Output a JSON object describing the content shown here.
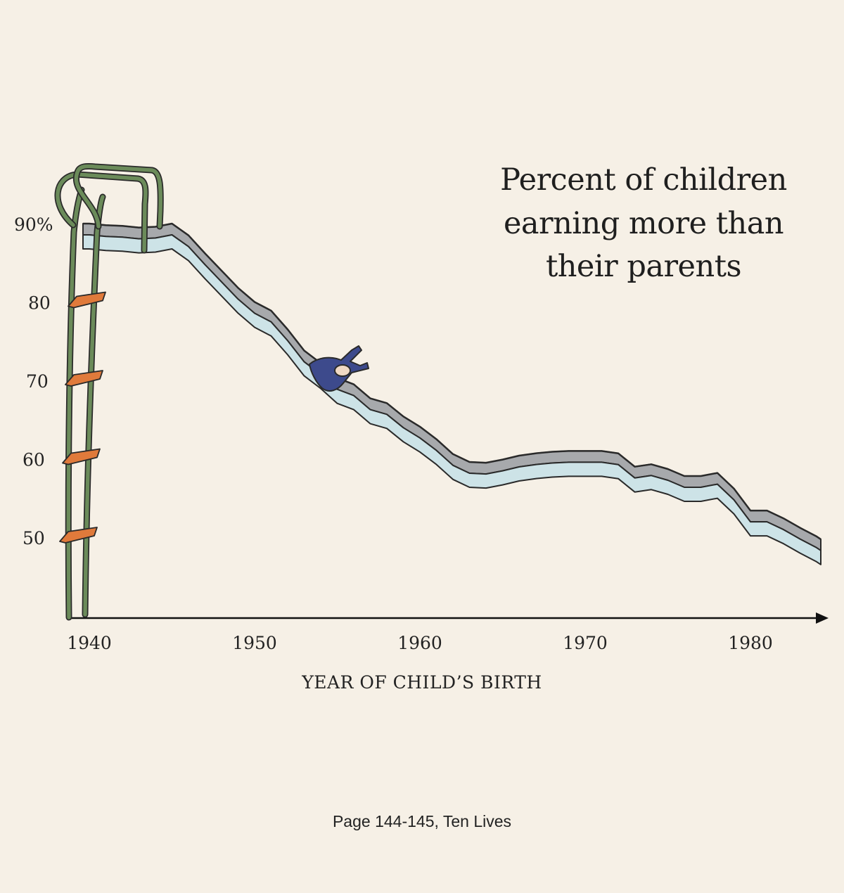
{
  "chart_data": {
    "type": "area",
    "title_lines": [
      "Percent of children",
      "earning more than",
      "their parents"
    ],
    "xlabel": "YEAR OF CHILD’S BIRTH",
    "ylabel": "",
    "xlim": [
      1939,
      1985
    ],
    "ylim": [
      40,
      95
    ],
    "x_ticks": [
      "1940",
      "1950",
      "1960",
      "1970",
      "1980"
    ],
    "y_ticks": [
      "90%",
      "80",
      "70",
      "60",
      "50"
    ],
    "series": [
      {
        "x": [
          1940,
          1941,
          1942,
          1943,
          1944,
          1945,
          1946,
          1947,
          1948,
          1949,
          1950,
          1951,
          1952,
          1953,
          1954,
          1955,
          1956,
          1957,
          1958,
          1959,
          1960,
          1961,
          1962,
          1963,
          1964,
          1965,
          1966,
          1967,
          1968,
          1969,
          1970,
          1971,
          1972,
          1973,
          1974,
          1975,
          1976,
          1977,
          1978,
          1979,
          1980,
          1981,
          1982,
          1983,
          1984
        ],
        "values": [
          90,
          89.8,
          89.7,
          89.5,
          89.6,
          90,
          88.5,
          86.2,
          84.0,
          81.8,
          80.0,
          78.9,
          76.5,
          73.8,
          72.2,
          70.3,
          69.5,
          67.7,
          67.1,
          65.4,
          64.1,
          62.5,
          60.6,
          59.6,
          59.5,
          59.9,
          60.4,
          60.7,
          60.9,
          61.0,
          61.0,
          61.0,
          60.7,
          59.0,
          59.3,
          58.7,
          57.8,
          57.8,
          58.2,
          56.2,
          53.4,
          53.4,
          52.4,
          51.2,
          50.1
        ]
      }
    ],
    "colors": {
      "background": "#f6f0e6",
      "slide_top": "#a7a9ac",
      "slide_face": "#cde3e7",
      "ladder": "#6b8b5a",
      "rungs": "#e07a3b",
      "figure": "#3d4a8c",
      "outline": "#2a2a2a"
    }
  },
  "caption": "Page 144-145, Ten Lives"
}
